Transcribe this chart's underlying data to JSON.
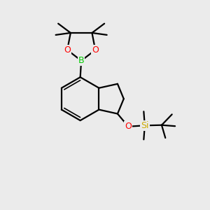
{
  "background_color": "#ebebeb",
  "bond_color": "#000000",
  "atom_colors": {
    "O": "#ff0000",
    "B": "#00cc00",
    "Si": "#ccaa00"
  },
  "figsize": [
    3.0,
    3.0
  ],
  "dpi": 100,
  "xlim": [
    0,
    10
  ],
  "ylim": [
    0,
    10
  ],
  "lw": 1.6,
  "lw_inner": 1.2,
  "fs": 9.0
}
